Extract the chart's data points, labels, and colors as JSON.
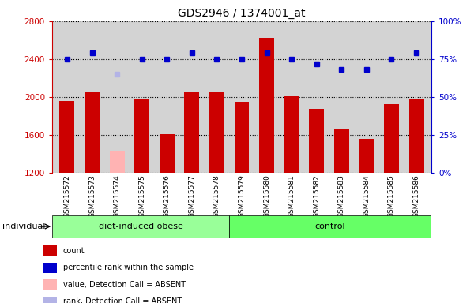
{
  "title": "GDS2946 / 1374001_at",
  "samples": [
    "GSM215572",
    "GSM215573",
    "GSM215574",
    "GSM215575",
    "GSM215576",
    "GSM215577",
    "GSM215578",
    "GSM215579",
    "GSM215580",
    "GSM215581",
    "GSM215582",
    "GSM215583",
    "GSM215584",
    "GSM215585",
    "GSM215586"
  ],
  "bar_values": [
    1960,
    2060,
    1420,
    1980,
    1610,
    2060,
    2050,
    1950,
    2620,
    2010,
    1870,
    1660,
    1560,
    1920,
    1980
  ],
  "bar_absent": [
    false,
    false,
    true,
    false,
    false,
    false,
    false,
    false,
    false,
    false,
    false,
    false,
    false,
    false,
    false
  ],
  "rank_values": [
    75,
    79,
    65,
    75,
    75,
    79,
    75,
    75,
    79,
    75,
    72,
    68,
    68,
    75,
    79
  ],
  "rank_absent": [
    false,
    false,
    true,
    false,
    false,
    false,
    false,
    false,
    false,
    false,
    false,
    false,
    false,
    false,
    false
  ],
  "ylim_left": [
    1200,
    2800
  ],
  "ylim_right": [
    0,
    100
  ],
  "yticks_left": [
    1200,
    1600,
    2000,
    2400,
    2800
  ],
  "yticks_right": [
    0,
    25,
    50,
    75,
    100
  ],
  "group1_label": "diet-induced obese",
  "group2_label": "control",
  "group1_count": 7,
  "group2_count": 8,
  "individual_label": "individual",
  "bar_color_present": "#cc0000",
  "bar_color_absent": "#ffb3b3",
  "rank_color_present": "#0000cc",
  "rank_color_absent": "#b3b3e6",
  "group1_color": "#99ff99",
  "group2_color": "#66ff66",
  "bg_color": "#d3d3d3",
  "legend_items": [
    {
      "color": "#cc0000",
      "label": "count"
    },
    {
      "color": "#0000cc",
      "label": "percentile rank within the sample"
    },
    {
      "color": "#ffb3b3",
      "label": "value, Detection Call = ABSENT"
    },
    {
      "color": "#b3b3e6",
      "label": "rank, Detection Call = ABSENT"
    }
  ]
}
